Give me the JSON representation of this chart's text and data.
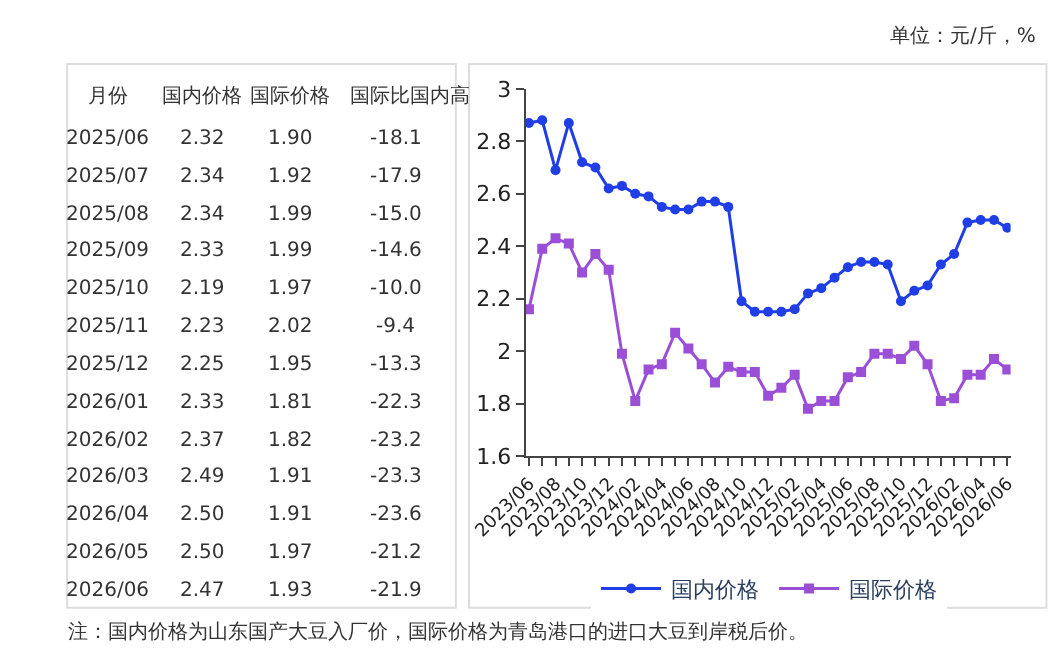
{
  "chart_data": [
    {
      "type": "other",
      "xlabel": "月份",
      "data_labels": true,
      "categories": [
        "2025/06",
        "2025/07",
        "2025/08",
        "2025/09",
        "2025/10",
        "2025/11",
        "2025/12",
        "2026/01",
        "2026/02",
        "2026/03",
        "2026/04",
        "2026/05",
        "2026/06"
      ],
      "series": [
        {
          "name": "国内价格",
          "values": [
            2.32,
            2.34,
            2.34,
            2.33,
            2.19,
            2.23,
            2.25,
            2.33,
            2.37,
            2.49,
            2.5,
            2.5,
            2.47
          ],
          "value_labels": [
            "2.32",
            "2.34",
            "2.34",
            "2.33",
            "2.19",
            "2.23",
            "2.25",
            "2.33",
            "2.37",
            "2.49",
            "2.50",
            "2.50",
            "2.47"
          ]
        },
        {
          "name": "国际价格",
          "values": [
            1.9,
            1.92,
            1.99,
            1.99,
            1.97,
            2.02,
            1.95,
            1.81,
            1.82,
            1.91,
            1.91,
            1.97,
            1.93
          ],
          "value_labels": [
            "1.90",
            "1.92",
            "1.99",
            "1.99",
            "1.97",
            "2.02",
            "1.95",
            "1.81",
            "1.82",
            "1.91",
            "1.91",
            "1.97",
            "1.93"
          ]
        },
        {
          "name": "国际比国内高",
          "values": [
            -18.1,
            -17.9,
            -15.0,
            -14.6,
            -10.0,
            -9.4,
            -13.3,
            -22.3,
            -23.2,
            -23.3,
            -23.6,
            -21.2,
            -21.9
          ],
          "value_labels": [
            "-18.1",
            "-17.9",
            "-15.0",
            "-14.6",
            "-10.0",
            "-9.4",
            "-13.3",
            "-22.3",
            "-23.2",
            "-23.3",
            "-23.6",
            "-21.2",
            "-21.9"
          ]
        }
      ]
    },
    {
      "type": "line",
      "legend": "bottom",
      "annotations": [
        "单位：元/斤，%",
        "注：国内价格为山东国产大豆入厂价，国际价格为青岛港口的进口大豆到岸税后价。"
      ],
      "categories": [
        "2023/06",
        null,
        "2023/08",
        null,
        "2023/10",
        null,
        "2023/12",
        null,
        "2024/02",
        null,
        "2024/04",
        null,
        "2024/06",
        null,
        "2024/08",
        null,
        "2024/10",
        null,
        "2024/12",
        null,
        "2025/02",
        null,
        "2025/04",
        null,
        "2025/06",
        null,
        "2025/08",
        null,
        "2025/10",
        null,
        "2025/12",
        null,
        "2026/02",
        null,
        "2026/04",
        null,
        "2026/06"
      ],
      "ylim": [
        1.6,
        3
      ],
      "yticks": [
        1.6,
        1.8,
        2,
        2.2,
        2.4,
        2.6,
        2.8,
        3
      ],
      "series": [
        {
          "name": "国内价格",
          "color": "#1f3ee6",
          "marker": "circle",
          "values": [
            2.87,
            2.88,
            2.69,
            2.87,
            2.72,
            2.7,
            2.62,
            2.63,
            2.6,
            2.59,
            2.55,
            2.54,
            2.54,
            2.57,
            2.57,
            2.55,
            2.19,
            2.15,
            2.15,
            2.15,
            2.16,
            2.22,
            2.24,
            2.28,
            2.32,
            2.34,
            2.34,
            2.33,
            2.19,
            2.23,
            2.25,
            2.33,
            2.37,
            2.49,
            2.5,
            2.5,
            2.47
          ]
        },
        {
          "name": "国际价格",
          "color": "#9b4fd6",
          "marker": "square",
          "values": [
            2.16,
            2.39,
            2.43,
            2.41,
            2.3,
            2.37,
            2.31,
            1.99,
            1.81,
            1.93,
            1.95,
            2.07,
            2.01,
            1.95,
            1.88,
            1.94,
            1.92,
            1.92,
            1.83,
            1.86,
            1.91,
            1.78,
            1.81,
            1.81,
            1.9,
            1.92,
            1.99,
            1.99,
            1.97,
            2.02,
            1.95,
            1.81,
            1.82,
            1.91,
            1.91,
            1.97,
            1.93
          ]
        }
      ]
    }
  ]
}
